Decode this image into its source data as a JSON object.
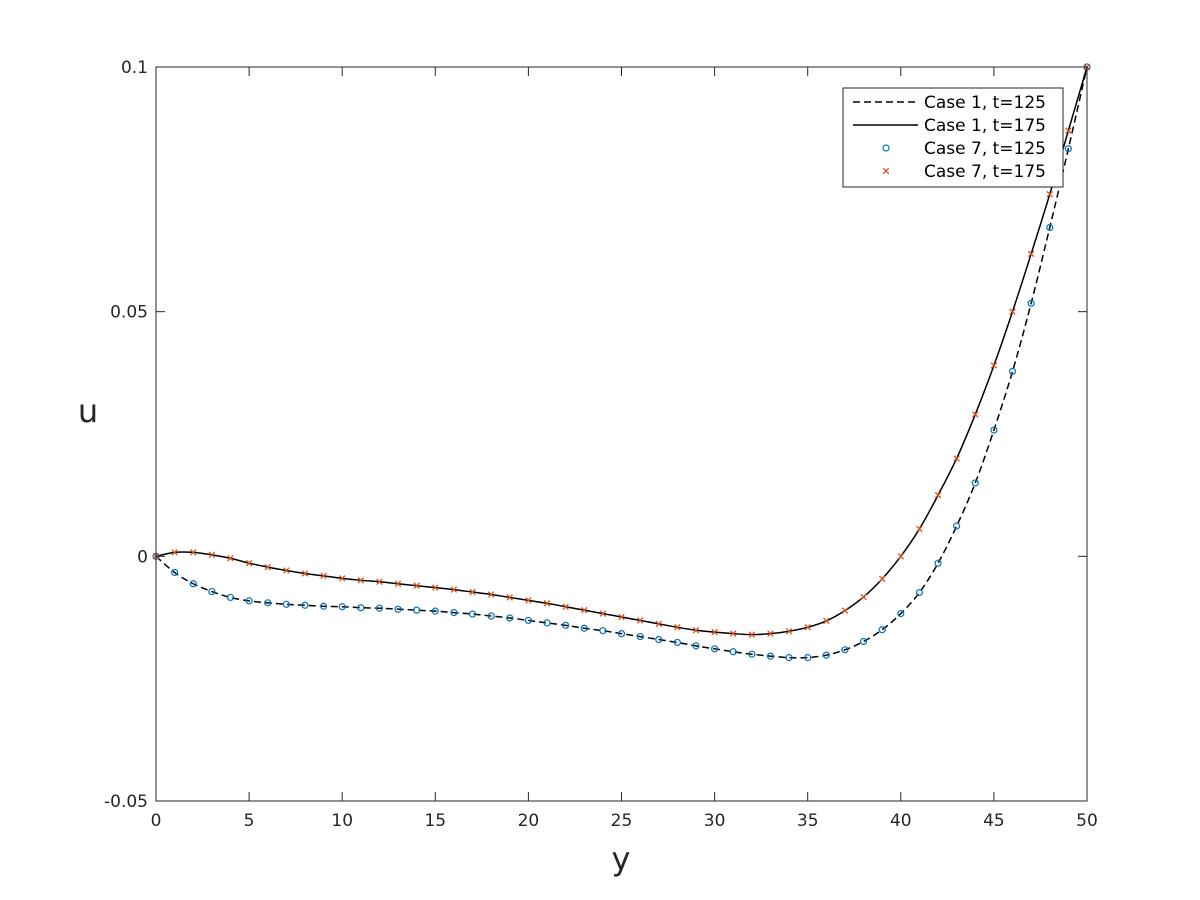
{
  "chart_data": {
    "type": "line",
    "title": "",
    "xlabel": "y",
    "ylabel": "u",
    "xlim": [
      0,
      50
    ],
    "ylim": [
      -0.05,
      0.1
    ],
    "xticks": [
      "0",
      "5",
      "10",
      "15",
      "20",
      "25",
      "30",
      "35",
      "40",
      "45",
      "50"
    ],
    "yticks": [
      "-0.05",
      "0",
      "0.05",
      "0.1"
    ],
    "grid": false,
    "legend_position": "top-right",
    "colors": {
      "line": "#000000",
      "case7_t125": "#0072BD",
      "case7_t175": "#D95319"
    },
    "series": [
      {
        "name": "Case 1, t=125",
        "style": "dashed-line",
        "x": [
          0,
          1,
          2,
          3,
          4,
          5,
          6,
          7,
          8,
          9,
          10,
          11,
          12,
          13,
          14,
          15,
          16,
          17,
          18,
          19,
          20,
          21,
          22,
          23,
          24,
          25,
          26,
          27,
          28,
          29,
          30,
          31,
          32,
          33,
          34,
          35,
          36,
          37,
          38,
          39,
          40,
          41,
          42,
          43,
          44,
          45,
          46,
          47,
          48,
          49,
          50
        ],
        "y": [
          0,
          -0.0033,
          -0.0056,
          -0.0072,
          -0.0084,
          -0.0091,
          -0.0095,
          -0.0098,
          -0.01,
          -0.0102,
          -0.0103,
          -0.0105,
          -0.0106,
          -0.0108,
          -0.011,
          -0.0112,
          -0.0115,
          -0.0118,
          -0.0122,
          -0.0126,
          -0.0131,
          -0.0136,
          -0.0141,
          -0.0147,
          -0.0152,
          -0.0158,
          -0.0164,
          -0.017,
          -0.0176,
          -0.0183,
          -0.0189,
          -0.0195,
          -0.02,
          -0.0204,
          -0.0207,
          -0.0207,
          -0.0202,
          -0.0191,
          -0.0174,
          -0.015,
          -0.0117,
          -0.0074,
          -0.0014,
          0.0062,
          0.015,
          0.0258,
          0.0378,
          0.0517,
          0.0672,
          0.0833,
          0.1
        ]
      },
      {
        "name": "Case 1, t=175",
        "style": "solid-line",
        "x": [
          0,
          1,
          2,
          3,
          4,
          5,
          6,
          7,
          8,
          9,
          10,
          11,
          12,
          13,
          14,
          15,
          16,
          17,
          18,
          19,
          20,
          21,
          22,
          23,
          24,
          25,
          26,
          27,
          28,
          29,
          30,
          31,
          32,
          33,
          34,
          35,
          36,
          37,
          38,
          39,
          40,
          41,
          42,
          43,
          44,
          45,
          46,
          47,
          48,
          49,
          50
        ],
        "y": [
          0,
          0.0008,
          0.0008,
          0.0003,
          -0.0004,
          -0.0014,
          -0.0022,
          -0.0029,
          -0.0035,
          -0.004,
          -0.0045,
          -0.0049,
          -0.0052,
          -0.0056,
          -0.006,
          -0.0064,
          -0.0068,
          -0.0073,
          -0.0078,
          -0.0084,
          -0.009,
          -0.0096,
          -0.0103,
          -0.011,
          -0.0117,
          -0.0124,
          -0.0131,
          -0.0138,
          -0.0145,
          -0.0151,
          -0.0155,
          -0.0158,
          -0.016,
          -0.0158,
          -0.0153,
          -0.0145,
          -0.0132,
          -0.0111,
          -0.0083,
          -0.0046,
          0.0,
          0.0056,
          0.0125,
          0.02,
          0.029,
          0.039,
          0.05,
          0.0618,
          0.074,
          0.087,
          0.1
        ]
      },
      {
        "name": "Case 7, t=125",
        "style": "circle-markers",
        "x": [
          0,
          1,
          2,
          3,
          4,
          5,
          6,
          7,
          8,
          9,
          10,
          11,
          12,
          13,
          14,
          15,
          16,
          17,
          18,
          19,
          20,
          21,
          22,
          23,
          24,
          25,
          26,
          27,
          28,
          29,
          30,
          31,
          32,
          33,
          34,
          35,
          36,
          37,
          38,
          39,
          40,
          41,
          42,
          43,
          44,
          45,
          46,
          47,
          48,
          49,
          50
        ],
        "y": [
          0,
          -0.0033,
          -0.0056,
          -0.0072,
          -0.0084,
          -0.0091,
          -0.0095,
          -0.0098,
          -0.01,
          -0.0102,
          -0.0103,
          -0.0105,
          -0.0106,
          -0.0108,
          -0.011,
          -0.0112,
          -0.0115,
          -0.0118,
          -0.0122,
          -0.0126,
          -0.0131,
          -0.0136,
          -0.0141,
          -0.0147,
          -0.0152,
          -0.0158,
          -0.0164,
          -0.017,
          -0.0176,
          -0.0183,
          -0.0189,
          -0.0195,
          -0.02,
          -0.0204,
          -0.0207,
          -0.0207,
          -0.0202,
          -0.0191,
          -0.0174,
          -0.015,
          -0.0117,
          -0.0074,
          -0.0014,
          0.0062,
          0.015,
          0.0258,
          0.0378,
          0.0517,
          0.0672,
          0.0833,
          0.1
        ]
      },
      {
        "name": "Case 7, t=175",
        "style": "x-markers",
        "x": [
          0,
          1,
          2,
          3,
          4,
          5,
          6,
          7,
          8,
          9,
          10,
          11,
          12,
          13,
          14,
          15,
          16,
          17,
          18,
          19,
          20,
          21,
          22,
          23,
          24,
          25,
          26,
          27,
          28,
          29,
          30,
          31,
          32,
          33,
          34,
          35,
          36,
          37,
          38,
          39,
          40,
          41,
          42,
          43,
          44,
          45,
          46,
          47,
          48,
          49,
          50
        ],
        "y": [
          0,
          0.0008,
          0.0008,
          0.0003,
          -0.0004,
          -0.0014,
          -0.0022,
          -0.0029,
          -0.0035,
          -0.004,
          -0.0045,
          -0.0049,
          -0.0052,
          -0.0056,
          -0.006,
          -0.0064,
          -0.0068,
          -0.0073,
          -0.0078,
          -0.0084,
          -0.009,
          -0.0096,
          -0.0103,
          -0.011,
          -0.0117,
          -0.0124,
          -0.0131,
          -0.0138,
          -0.0145,
          -0.0151,
          -0.0155,
          -0.0158,
          -0.016,
          -0.0158,
          -0.0153,
          -0.0145,
          -0.0132,
          -0.0111,
          -0.0083,
          -0.0046,
          0.0,
          0.0056,
          0.0125,
          0.02,
          0.029,
          0.039,
          0.05,
          0.0618,
          0.074,
          0.087,
          0.1
        ]
      }
    ]
  }
}
